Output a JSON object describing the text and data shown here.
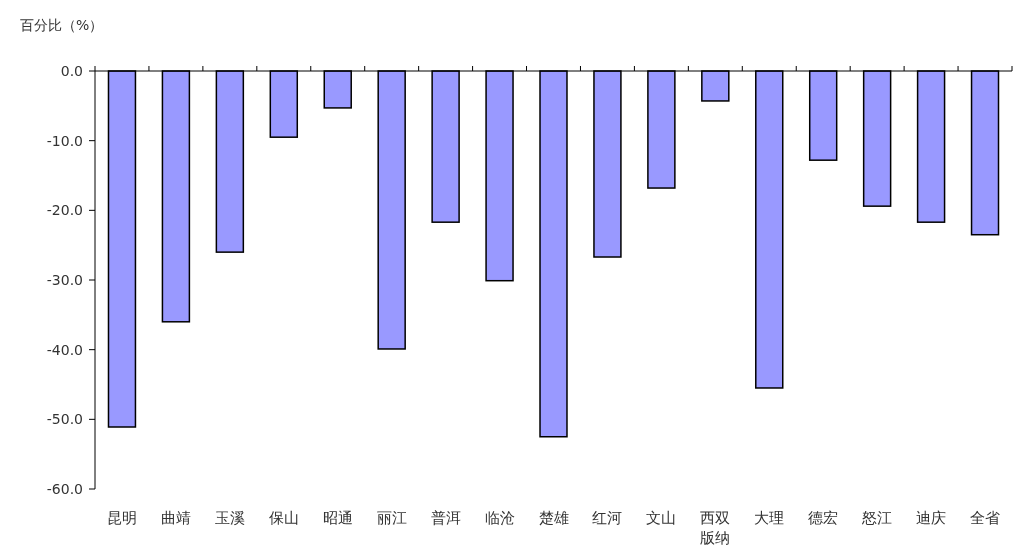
{
  "chart_data": {
    "type": "bar",
    "ylabel": "百分比（%）",
    "categories": [
      "昆明",
      "曲靖",
      "玉溪",
      "保山",
      "昭通",
      "丽江",
      "普洱",
      "临沧",
      "楚雄",
      "红河",
      "文山",
      "西双版纳",
      "大理",
      "德宏",
      "怒江",
      "迪庆",
      "全省"
    ],
    "series": [
      {
        "color": "#9999ff",
        "values": [
          -51.1,
          -36.0,
          -26.0,
          -9.5,
          -5.3,
          -39.9,
          -21.7,
          -30.1,
          -52.5,
          -26.7,
          -16.8,
          -4.3,
          -45.5,
          -12.8,
          -19.4,
          -21.7,
          -23.5
        ]
      }
    ],
    "ylim": [
      -60,
      0
    ],
    "yticks": [
      {
        "value": 0,
        "label": "0.0"
      },
      {
        "value": -10,
        "label": "-10.0"
      },
      {
        "value": -20,
        "label": "-20.0"
      },
      {
        "value": -30,
        "label": "-30.0"
      },
      {
        "value": -40,
        "label": "-40.0"
      },
      {
        "value": -50,
        "label": "-50.0"
      },
      {
        "value": -60,
        "label": "-60.0"
      }
    ]
  }
}
